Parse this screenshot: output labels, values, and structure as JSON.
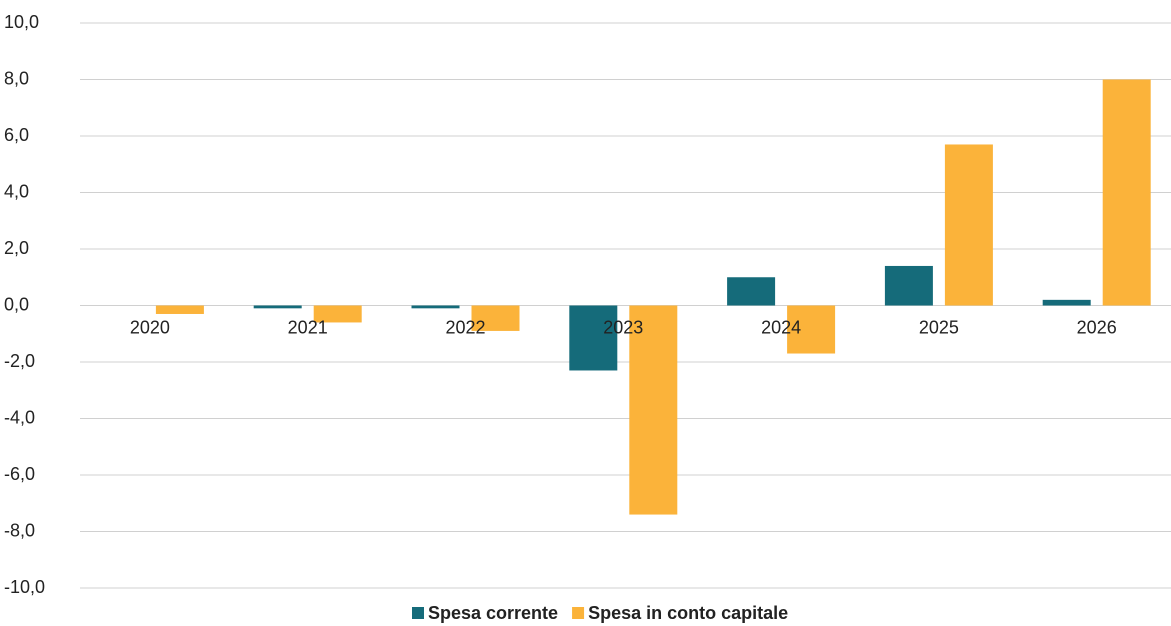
{
  "chart_data": {
    "type": "bar",
    "categories": [
      "2020",
      "2021",
      "2022",
      "2023",
      "2024",
      "2025",
      "2026"
    ],
    "series": [
      {
        "name": "Spesa corrente",
        "color": "#156b7a",
        "values": [
          0,
          -0.1,
          -0.1,
          -2.3,
          1.0,
          1.4,
          0.2
        ]
      },
      {
        "name": "Spesa in conto capitale",
        "color": "#fbb33a",
        "values": [
          -0.3,
          -0.6,
          -0.9,
          -7.4,
          -1.7,
          5.7,
          8.0
        ]
      }
    ],
    "ylim": [
      -10,
      10
    ],
    "yticks": [
      {
        "value": -10,
        "label": "-10,0"
      },
      {
        "value": -8,
        "label": "-8,0"
      },
      {
        "value": -6,
        "label": "-6,0"
      },
      {
        "value": -4,
        "label": "-4,0"
      },
      {
        "value": -2,
        "label": "-2,0"
      },
      {
        "value": 0,
        "label": "0,0"
      },
      {
        "value": 2,
        "label": "2,0"
      },
      {
        "value": 4,
        "label": "4,0"
      },
      {
        "value": 6,
        "label": "6,0"
      },
      {
        "value": 8,
        "label": "8,0"
      },
      {
        "value": 10,
        "label": "10,0"
      }
    ],
    "grid": true,
    "legend": "bottom"
  }
}
